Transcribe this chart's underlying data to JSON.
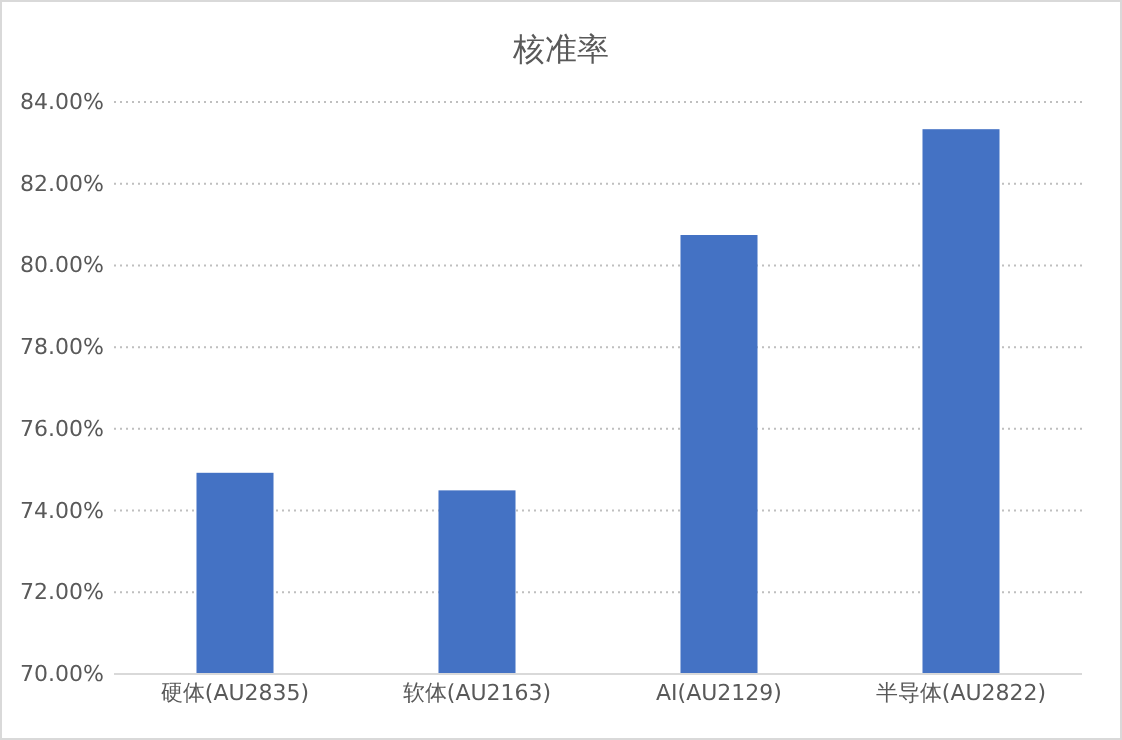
{
  "chart_data": {
    "type": "bar",
    "title": "核准率",
    "categories": [
      "硬体(AU2835)",
      "软体(AU2163)",
      "AI(AU2129)",
      "半导体(AU2822)"
    ],
    "values": [
      74.9,
      74.47,
      80.72,
      83.31
    ],
    "color": "#4472c4",
    "ylim": [
      70,
      84
    ],
    "yticks": [
      {
        "value": 70,
        "label": "70.00%"
      },
      {
        "value": 72,
        "label": "72.00%"
      },
      {
        "value": 74,
        "label": "74.00%"
      },
      {
        "value": 76,
        "label": "76.00%"
      },
      {
        "value": 78,
        "label": "78.00%"
      },
      {
        "value": 80,
        "label": "80.00%"
      },
      {
        "value": 82,
        "label": "82.00%"
      },
      {
        "value": 84,
        "label": "84.00%"
      }
    ],
    "grid": "y"
  }
}
